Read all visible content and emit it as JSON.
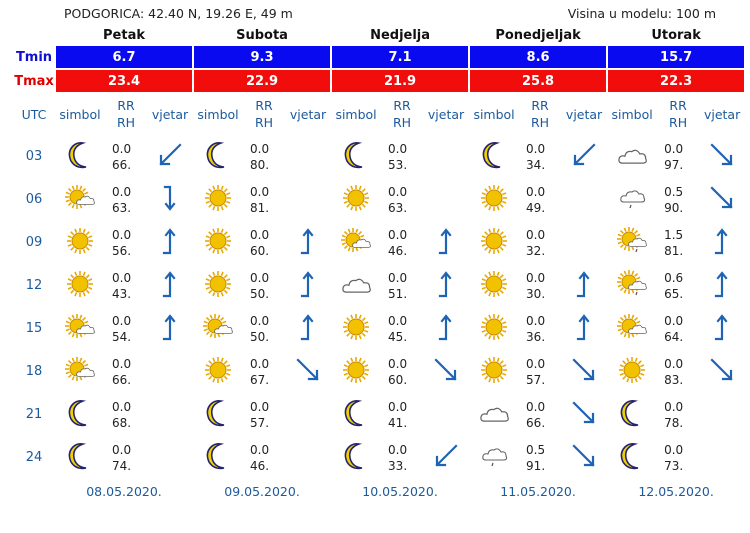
{
  "header": {
    "location": "PODGORICA: 42.40 N, 19.26 E, 49 m",
    "model_height": "Visina u modelu: 100 m"
  },
  "days": [
    {
      "name": "Petak",
      "tmin": "6.7",
      "tmax": "23.4",
      "date": "08.05.2020."
    },
    {
      "name": "Subota",
      "tmin": "9.3",
      "tmax": "22.9",
      "date": "09.05.2020."
    },
    {
      "name": "Nedjelja",
      "tmin": "7.1",
      "tmax": "21.9",
      "date": "10.05.2020."
    },
    {
      "name": "Ponedjeljak",
      "tmin": "8.6",
      "tmax": "25.8",
      "date": "11.05.2020."
    },
    {
      "name": "Utorak",
      "tmin": "15.7",
      "tmax": "22.3",
      "date": "12.05.2020."
    }
  ],
  "labels": {
    "tmin": "Tmin",
    "tmax": "Tmax",
    "utc": "UTC",
    "simbol": "simbol",
    "rr": "RR",
    "rh": "RH",
    "vjetar": "vjetar"
  },
  "colors": {
    "tmin_bg": "#0a0af0",
    "tmax_bg": "#f20d0d",
    "label_blue": "#1c5a9c",
    "arrow": "#1f63b5",
    "moon": "#f2d100",
    "sun": "#f2c200"
  },
  "rows": [
    {
      "hour": "03",
      "cells": [
        {
          "icon": "moon-icon",
          "rr": "0.0",
          "rh": "66.",
          "wind": "sw"
        },
        {
          "icon": "moon-icon",
          "rr": "0.0",
          "rh": "80.",
          "wind": ""
        },
        {
          "icon": "moon-icon",
          "rr": "0.0",
          "rh": "53.",
          "wind": ""
        },
        {
          "icon": "moon-icon",
          "rr": "0.0",
          "rh": "34.",
          "wind": "sw"
        },
        {
          "icon": "cloud-icon",
          "rr": "0.0",
          "rh": "97.",
          "wind": "se"
        }
      ]
    },
    {
      "hour": "06",
      "cells": [
        {
          "icon": "sun-cloud-icon",
          "rr": "0.0",
          "rh": "63.",
          "wind": "s-hook"
        },
        {
          "icon": "sun-icon",
          "rr": "0.0",
          "rh": "81.",
          "wind": ""
        },
        {
          "icon": "sun-icon",
          "rr": "0.0",
          "rh": "63.",
          "wind": ""
        },
        {
          "icon": "sun-icon",
          "rr": "0.0",
          "rh": "49.",
          "wind": ""
        },
        {
          "icon": "cloud-rain-icon",
          "rr": "0.5",
          "rh": "90.",
          "wind": "se"
        }
      ]
    },
    {
      "hour": "09",
      "cells": [
        {
          "icon": "sun-icon",
          "rr": "0.0",
          "rh": "56.",
          "wind": "n"
        },
        {
          "icon": "sun-icon",
          "rr": "0.0",
          "rh": "60.",
          "wind": "n"
        },
        {
          "icon": "sun-cloud-icon",
          "rr": "0.0",
          "rh": "46.",
          "wind": "n"
        },
        {
          "icon": "sun-icon",
          "rr": "0.0",
          "rh": "32.",
          "wind": ""
        },
        {
          "icon": "sun-cloud-rain-icon",
          "rr": "1.5",
          "rh": "81.",
          "wind": "n"
        }
      ]
    },
    {
      "hour": "12",
      "cells": [
        {
          "icon": "sun-icon",
          "rr": "0.0",
          "rh": "43.",
          "wind": "n"
        },
        {
          "icon": "sun-icon",
          "rr": "0.0",
          "rh": "50.",
          "wind": "n"
        },
        {
          "icon": "cloud-icon",
          "rr": "0.0",
          "rh": "51.",
          "wind": "n"
        },
        {
          "icon": "sun-icon",
          "rr": "0.0",
          "rh": "30.",
          "wind": "n"
        },
        {
          "icon": "sun-cloud-rain-icon",
          "rr": "0.6",
          "rh": "65.",
          "wind": "n"
        }
      ]
    },
    {
      "hour": "15",
      "cells": [
        {
          "icon": "sun-cloud-icon",
          "rr": "0.0",
          "rh": "54.",
          "wind": "n"
        },
        {
          "icon": "sun-cloud-icon",
          "rr": "0.0",
          "rh": "50.",
          "wind": "n"
        },
        {
          "icon": "sun-icon",
          "rr": "0.0",
          "rh": "45.",
          "wind": "n"
        },
        {
          "icon": "sun-icon",
          "rr": "0.0",
          "rh": "36.",
          "wind": "n"
        },
        {
          "icon": "sun-cloud-icon",
          "rr": "0.0",
          "rh": "64.",
          "wind": "n"
        }
      ]
    },
    {
      "hour": "18",
      "cells": [
        {
          "icon": "sun-cloud-icon",
          "rr": "0.0",
          "rh": "66.",
          "wind": ""
        },
        {
          "icon": "sun-icon",
          "rr": "0.0",
          "rh": "67.",
          "wind": "se"
        },
        {
          "icon": "sun-icon",
          "rr": "0.0",
          "rh": "60.",
          "wind": "se"
        },
        {
          "icon": "sun-icon",
          "rr": "0.0",
          "rh": "57.",
          "wind": "se"
        },
        {
          "icon": "sun-icon",
          "rr": "0.0",
          "rh": "83.",
          "wind": "se"
        }
      ]
    },
    {
      "hour": "21",
      "cells": [
        {
          "icon": "moon-icon",
          "rr": "0.0",
          "rh": "68.",
          "wind": ""
        },
        {
          "icon": "moon-icon",
          "rr": "0.0",
          "rh": "57.",
          "wind": ""
        },
        {
          "icon": "moon-icon",
          "rr": "0.0",
          "rh": "41.",
          "wind": ""
        },
        {
          "icon": "cloud-icon",
          "rr": "0.0",
          "rh": "66.",
          "wind": "se"
        },
        {
          "icon": "moon-icon",
          "rr": "0.0",
          "rh": "78.",
          "wind": ""
        }
      ]
    },
    {
      "hour": "24",
      "cells": [
        {
          "icon": "moon-icon",
          "rr": "0.0",
          "rh": "74.",
          "wind": ""
        },
        {
          "icon": "moon-icon",
          "rr": "0.0",
          "rh": "46.",
          "wind": ""
        },
        {
          "icon": "moon-icon",
          "rr": "0.0",
          "rh": "33.",
          "wind": "sw"
        },
        {
          "icon": "cloud-rain-icon",
          "rr": "0.5",
          "rh": "91.",
          "wind": "se"
        },
        {
          "icon": "moon-icon",
          "rr": "0.0",
          "rh": "73.",
          "wind": ""
        }
      ]
    }
  ]
}
